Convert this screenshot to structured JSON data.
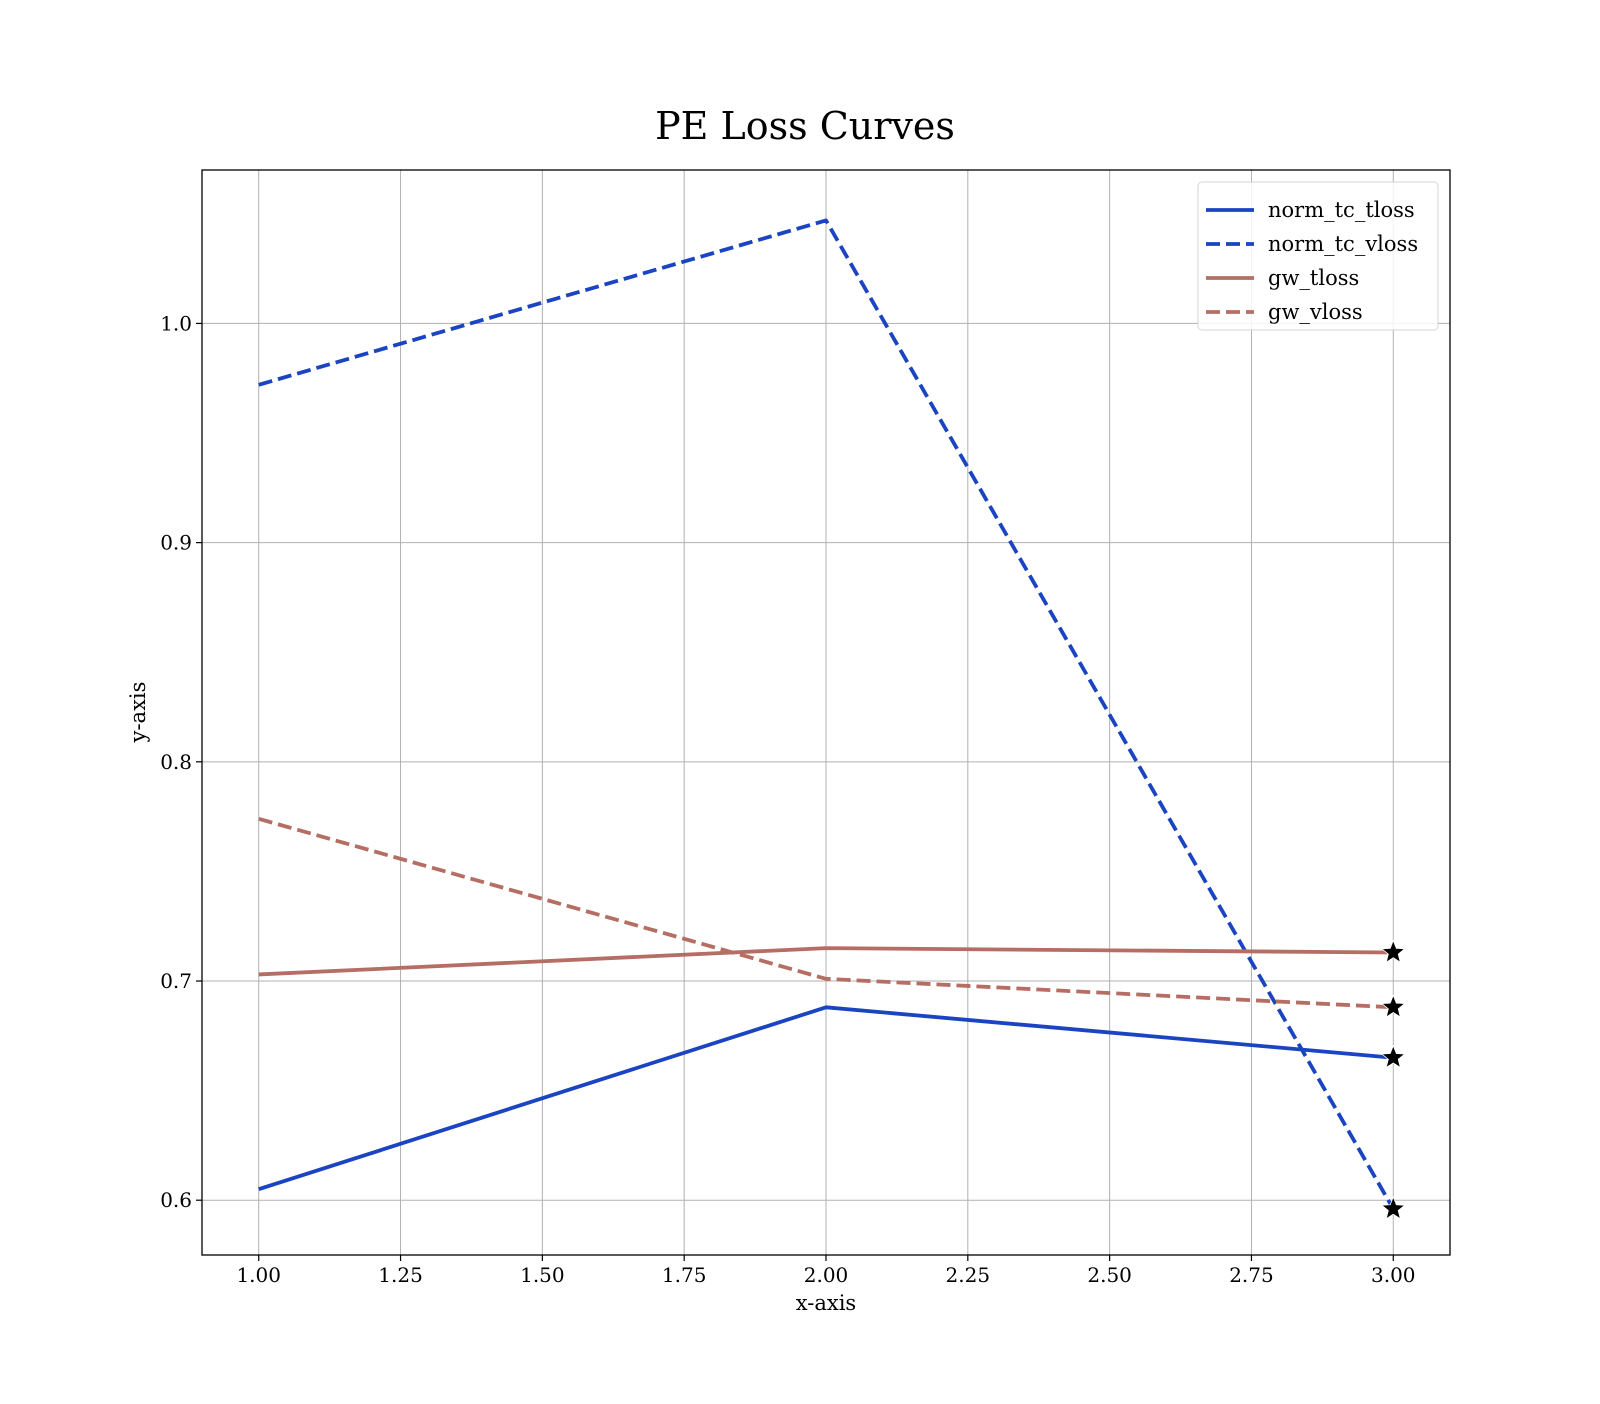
{
  "chart_data": {
    "type": "line",
    "title": "PE Loss Curves",
    "xlabel": "x-axis",
    "ylabel": "y-axis",
    "xlim": [
      0.9,
      3.1
    ],
    "ylim": [
      0.575,
      1.07
    ],
    "xticks": [
      1.0,
      1.25,
      1.5,
      1.75,
      2.0,
      2.25,
      2.5,
      2.75,
      3.0
    ],
    "xtick_labels": [
      "1.00",
      "1.25",
      "1.50",
      "1.75",
      "2.00",
      "2.25",
      "2.50",
      "2.75",
      "3.00"
    ],
    "yticks": [
      0.6,
      0.7,
      0.8,
      0.9,
      1.0
    ],
    "ytick_labels": [
      "0.6",
      "0.7",
      "0.8",
      "0.9",
      "1.0"
    ],
    "grid": true,
    "legend_position": "top-right",
    "x": [
      1,
      2,
      3
    ],
    "series": [
      {
        "name": "norm_tc_tloss",
        "values": [
          0.605,
          0.688,
          0.665
        ],
        "color": "#1a44c2",
        "style": "solid",
        "end_marker": "star"
      },
      {
        "name": "norm_tc_vloss",
        "values": [
          0.972,
          1.047,
          0.596
        ],
        "color": "#1a44c2",
        "style": "dashed",
        "end_marker": "star"
      },
      {
        "name": "gw_tloss",
        "values": [
          0.703,
          0.715,
          0.713
        ],
        "color": "#b56e63",
        "style": "solid",
        "end_marker": "star"
      },
      {
        "name": "gw_vloss",
        "values": [
          0.774,
          0.701,
          0.688
        ],
        "color": "#b56e63",
        "style": "dashed",
        "end_marker": "star"
      }
    ]
  }
}
